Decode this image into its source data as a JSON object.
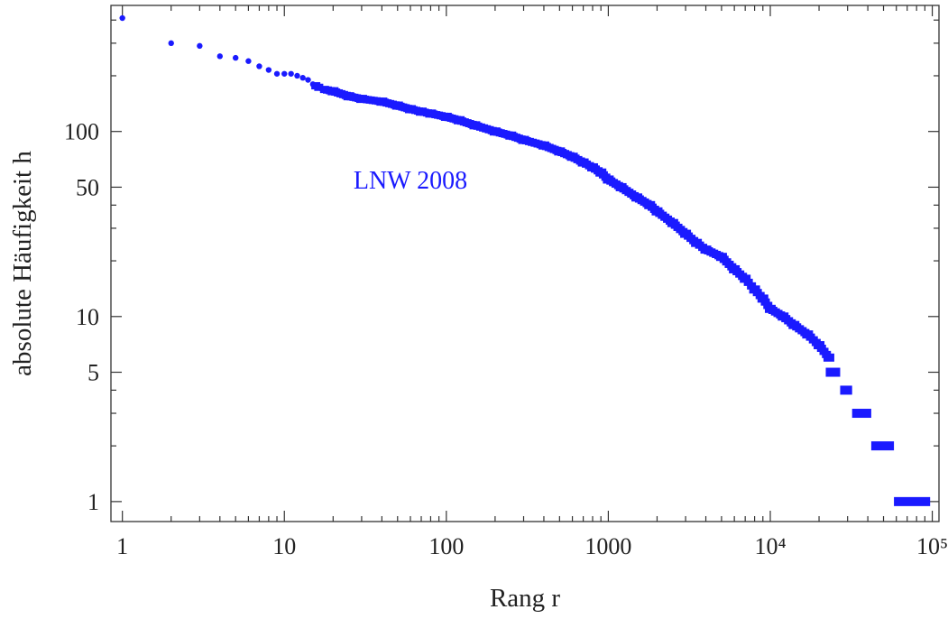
{
  "chart_data": {
    "type": "scatter",
    "title": "",
    "xlabel": "Rang r",
    "ylabel": "absolute Häufigkeit h",
    "x_scale": "log",
    "y_scale": "log",
    "xlim": [
      0.85,
      110000
    ],
    "ylim": [
      0.78,
      480
    ],
    "grid": false,
    "x_ticks": [
      {
        "value": 1,
        "label": "1"
      },
      {
        "value": 10,
        "label": "10"
      },
      {
        "value": 100,
        "label": "100"
      },
      {
        "value": 1000,
        "label": "1000"
      },
      {
        "value": 10000,
        "label": "10⁴"
      },
      {
        "value": 100000,
        "label": "10⁵"
      }
    ],
    "y_ticks": [
      {
        "value": 1,
        "label": "1"
      },
      {
        "value": 5,
        "label": "5"
      },
      {
        "value": 10,
        "label": "10"
      },
      {
        "value": 50,
        "label": "50"
      },
      {
        "value": 100,
        "label": "100"
      }
    ],
    "annotation": {
      "text": "LNW 2008",
      "x": 60,
      "y": 55
    },
    "color": "#1a1aff",
    "series": [
      {
        "points": [
          [
            1,
            410
          ],
          [
            2,
            300
          ],
          [
            3,
            290
          ],
          [
            4,
            255
          ],
          [
            5,
            250
          ],
          [
            6,
            240
          ],
          [
            7,
            225
          ],
          [
            8,
            215
          ],
          [
            9,
            205
          ],
          [
            10,
            205
          ],
          [
            11,
            205
          ],
          [
            12,
            200
          ],
          [
            13,
            195
          ],
          [
            14,
            190
          ],
          [
            15,
            180
          ],
          [
            17,
            170
          ],
          [
            20,
            165
          ],
          [
            25,
            155
          ],
          [
            30,
            150
          ],
          [
            40,
            145
          ],
          [
            50,
            138
          ],
          [
            60,
            132
          ],
          [
            70,
            128
          ],
          [
            80,
            125
          ],
          [
            100,
            120
          ],
          [
            120,
            115
          ],
          [
            150,
            108
          ],
          [
            200,
            100
          ],
          [
            250,
            95
          ],
          [
            300,
            90
          ],
          [
            400,
            84
          ],
          [
            500,
            78
          ],
          [
            600,
            73
          ],
          [
            700,
            68
          ],
          [
            800,
            64
          ],
          [
            900,
            60
          ],
          [
            1000,
            55
          ],
          [
            1200,
            50
          ],
          [
            1500,
            44
          ],
          [
            1800,
            40
          ],
          [
            2000,
            37
          ],
          [
            2500,
            32
          ],
          [
            3000,
            28
          ],
          [
            3500,
            25
          ],
          [
            4000,
            23
          ],
          [
            5000,
            21
          ],
          [
            6000,
            18
          ],
          [
            7000,
            16
          ],
          [
            8000,
            14
          ],
          [
            9000,
            12.5
          ],
          [
            10000,
            11
          ],
          [
            12000,
            10
          ],
          [
            14000,
            9
          ],
          [
            17000,
            8
          ],
          [
            20000,
            7
          ],
          [
            23000,
            6
          ]
        ]
      }
    ],
    "plateaus": [
      {
        "y": 5,
        "x_from": 22000,
        "x_to": 27000
      },
      {
        "y": 4,
        "x_from": 27000,
        "x_to": 32000
      },
      {
        "y": 3,
        "x_from": 32000,
        "x_to": 42000
      },
      {
        "y": 2,
        "x_from": 42000,
        "x_to": 58000
      },
      {
        "y": 1,
        "x_from": 58000,
        "x_to": 97000
      }
    ]
  }
}
